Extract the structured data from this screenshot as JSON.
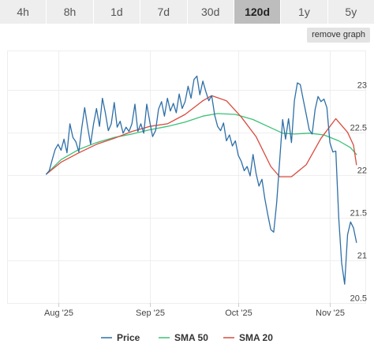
{
  "range_tabs": [
    {
      "label": "4h",
      "active": false
    },
    {
      "label": "8h",
      "active": false
    },
    {
      "label": "1d",
      "active": false
    },
    {
      "label": "7d",
      "active": false
    },
    {
      "label": "30d",
      "active": false
    },
    {
      "label": "120d",
      "active": true
    },
    {
      "label": "1y",
      "active": false
    },
    {
      "label": "5y",
      "active": false
    }
  ],
  "remove_graph_label": "remove graph",
  "chart_data": {
    "type": "line",
    "title": "",
    "xlabel": "",
    "ylabel": "",
    "ylim": [
      20.5,
      23.45
    ],
    "xlim": [
      "2025-07-15",
      "2025-11-13"
    ],
    "y_ticks": [
      "23",
      "22.5",
      "22",
      "21.5",
      "21",
      "20.5"
    ],
    "x_ticks": [
      {
        "label": "Aug '25",
        "date": "2025-08-01"
      },
      {
        "label": "Sep '25",
        "date": "2025-09-01"
      },
      {
        "label": "Oct '25",
        "date": "2025-10-01"
      },
      {
        "label": "Nov '25",
        "date": "2025-11-01"
      }
    ],
    "grid": true,
    "legend_position": "bottom",
    "series": [
      {
        "name": "Price",
        "color": "#2e6fa7",
        "points": [
          [
            "2025-07-28",
            22.01
          ],
          [
            "2025-07-29",
            22.05
          ],
          [
            "2025-07-30",
            22.18
          ],
          [
            "2025-07-31",
            22.3
          ],
          [
            "2025-08-01",
            22.36
          ],
          [
            "2025-08-02",
            22.29
          ],
          [
            "2025-08-03",
            22.42
          ],
          [
            "2025-08-04",
            22.26
          ],
          [
            "2025-08-05",
            22.6
          ],
          [
            "2025-08-06",
            22.44
          ],
          [
            "2025-08-07",
            22.39
          ],
          [
            "2025-08-08",
            22.27
          ],
          [
            "2025-08-09",
            22.55
          ],
          [
            "2025-08-10",
            22.79
          ],
          [
            "2025-08-11",
            22.56
          ],
          [
            "2025-08-12",
            22.36
          ],
          [
            "2025-08-13",
            22.6
          ],
          [
            "2025-08-14",
            22.78
          ],
          [
            "2025-08-15",
            22.57
          ],
          [
            "2025-08-16",
            22.9
          ],
          [
            "2025-08-17",
            22.73
          ],
          [
            "2025-08-18",
            22.52
          ],
          [
            "2025-08-19",
            22.6
          ],
          [
            "2025-08-20",
            22.85
          ],
          [
            "2025-08-21",
            22.56
          ],
          [
            "2025-08-22",
            22.63
          ],
          [
            "2025-08-23",
            22.49
          ],
          [
            "2025-08-24",
            22.56
          ],
          [
            "2025-08-25",
            22.51
          ],
          [
            "2025-08-26",
            22.6
          ],
          [
            "2025-08-27",
            22.83
          ],
          [
            "2025-08-28",
            22.51
          ],
          [
            "2025-08-29",
            22.6
          ],
          [
            "2025-08-30",
            22.49
          ],
          [
            "2025-08-31",
            22.83
          ],
          [
            "2025-09-01",
            22.63
          ],
          [
            "2025-09-02",
            22.45
          ],
          [
            "2025-09-03",
            22.52
          ],
          [
            "2025-09-04",
            22.77
          ],
          [
            "2025-09-05",
            22.86
          ],
          [
            "2025-09-06",
            22.69
          ],
          [
            "2025-09-07",
            22.9
          ],
          [
            "2025-09-08",
            22.75
          ],
          [
            "2025-09-09",
            22.84
          ],
          [
            "2025-09-10",
            22.73
          ],
          [
            "2025-09-11",
            22.95
          ],
          [
            "2025-09-12",
            22.78
          ],
          [
            "2025-09-13",
            22.86
          ],
          [
            "2025-09-14",
            23.04
          ],
          [
            "2025-09-15",
            22.9
          ],
          [
            "2025-09-16",
            23.12
          ],
          [
            "2025-09-17",
            23.16
          ],
          [
            "2025-09-18",
            22.94
          ],
          [
            "2025-09-19",
            23.1
          ],
          [
            "2025-09-20",
            22.98
          ],
          [
            "2025-09-21",
            22.87
          ],
          [
            "2025-09-22",
            22.93
          ],
          [
            "2025-09-23",
            22.7
          ],
          [
            "2025-09-24",
            22.57
          ],
          [
            "2025-09-25",
            22.52
          ],
          [
            "2025-09-26",
            22.61
          ],
          [
            "2025-09-27",
            22.4
          ],
          [
            "2025-09-28",
            22.47
          ],
          [
            "2025-09-29",
            22.34
          ],
          [
            "2025-09-30",
            22.4
          ],
          [
            "2025-10-01",
            22.23
          ],
          [
            "2025-10-02",
            22.16
          ],
          [
            "2025-10-03",
            22.05
          ],
          [
            "2025-10-04",
            22.1
          ],
          [
            "2025-10-05",
            21.99
          ],
          [
            "2025-10-06",
            22.24
          ],
          [
            "2025-10-07",
            22.02
          ],
          [
            "2025-10-08",
            21.87
          ],
          [
            "2025-10-09",
            21.95
          ],
          [
            "2025-10-10",
            21.72
          ],
          [
            "2025-10-11",
            21.53
          ],
          [
            "2025-10-12",
            21.36
          ],
          [
            "2025-10-13",
            21.33
          ],
          [
            "2025-10-14",
            21.68
          ],
          [
            "2025-10-15",
            22.16
          ],
          [
            "2025-10-16",
            22.65
          ],
          [
            "2025-10-17",
            22.42
          ],
          [
            "2025-10-18",
            22.66
          ],
          [
            "2025-10-19",
            22.38
          ],
          [
            "2025-10-20",
            22.87
          ],
          [
            "2025-10-21",
            23.08
          ],
          [
            "2025-10-22",
            23.06
          ],
          [
            "2025-10-23",
            22.88
          ],
          [
            "2025-10-24",
            22.71
          ],
          [
            "2025-10-25",
            22.53
          ],
          [
            "2025-10-26",
            22.48
          ],
          [
            "2025-10-27",
            22.77
          ],
          [
            "2025-10-28",
            22.92
          ],
          [
            "2025-10-29",
            22.86
          ],
          [
            "2025-10-30",
            22.89
          ],
          [
            "2025-10-31",
            22.79
          ],
          [
            "2025-11-01",
            22.38
          ],
          [
            "2025-11-02",
            22.27
          ],
          [
            "2025-11-03",
            22.28
          ],
          [
            "2025-11-04",
            21.5
          ],
          [
            "2025-11-05",
            20.97
          ],
          [
            "2025-11-06",
            20.72
          ],
          [
            "2025-11-07",
            21.3
          ],
          [
            "2025-11-08",
            21.45
          ],
          [
            "2025-11-09",
            21.38
          ],
          [
            "2025-11-10",
            21.21
          ]
        ]
      },
      {
        "name": "SMA 50",
        "color": "#3cc177",
        "points": [
          [
            "2025-07-28",
            22.01
          ],
          [
            "2025-08-02",
            22.18
          ],
          [
            "2025-08-08",
            22.3
          ],
          [
            "2025-08-14",
            22.38
          ],
          [
            "2025-08-20",
            22.44
          ],
          [
            "2025-08-26",
            22.48
          ],
          [
            "2025-09-01",
            22.53
          ],
          [
            "2025-09-07",
            22.57
          ],
          [
            "2025-09-13",
            22.62
          ],
          [
            "2025-09-19",
            22.69
          ],
          [
            "2025-09-24",
            22.72
          ],
          [
            "2025-09-30",
            22.71
          ],
          [
            "2025-10-06",
            22.65
          ],
          [
            "2025-10-11",
            22.57
          ],
          [
            "2025-10-16",
            22.49
          ],
          [
            "2025-10-20",
            22.48
          ],
          [
            "2025-10-25",
            22.49
          ],
          [
            "2025-10-30",
            22.47
          ],
          [
            "2025-11-04",
            22.4
          ],
          [
            "2025-11-08",
            22.32
          ],
          [
            "2025-11-10",
            22.24
          ]
        ]
      },
      {
        "name": "SMA 20",
        "color": "#d94a3e",
        "points": [
          [
            "2025-07-28",
            22.01
          ],
          [
            "2025-08-02",
            22.15
          ],
          [
            "2025-08-08",
            22.26
          ],
          [
            "2025-08-14",
            22.36
          ],
          [
            "2025-08-20",
            22.43
          ],
          [
            "2025-08-26",
            22.51
          ],
          [
            "2025-09-01",
            22.57
          ],
          [
            "2025-09-07",
            22.6
          ],
          [
            "2025-09-13",
            22.71
          ],
          [
            "2025-09-19",
            22.87
          ],
          [
            "2025-09-22",
            22.93
          ],
          [
            "2025-09-27",
            22.87
          ],
          [
            "2025-10-02",
            22.68
          ],
          [
            "2025-10-07",
            22.45
          ],
          [
            "2025-10-12",
            22.1
          ],
          [
            "2025-10-15",
            21.98
          ],
          [
            "2025-10-19",
            21.98
          ],
          [
            "2025-10-24",
            22.12
          ],
          [
            "2025-10-29",
            22.43
          ],
          [
            "2025-11-03",
            22.66
          ],
          [
            "2025-11-07",
            22.5
          ],
          [
            "2025-11-09",
            22.35
          ],
          [
            "2025-11-10",
            22.12
          ]
        ]
      }
    ]
  }
}
